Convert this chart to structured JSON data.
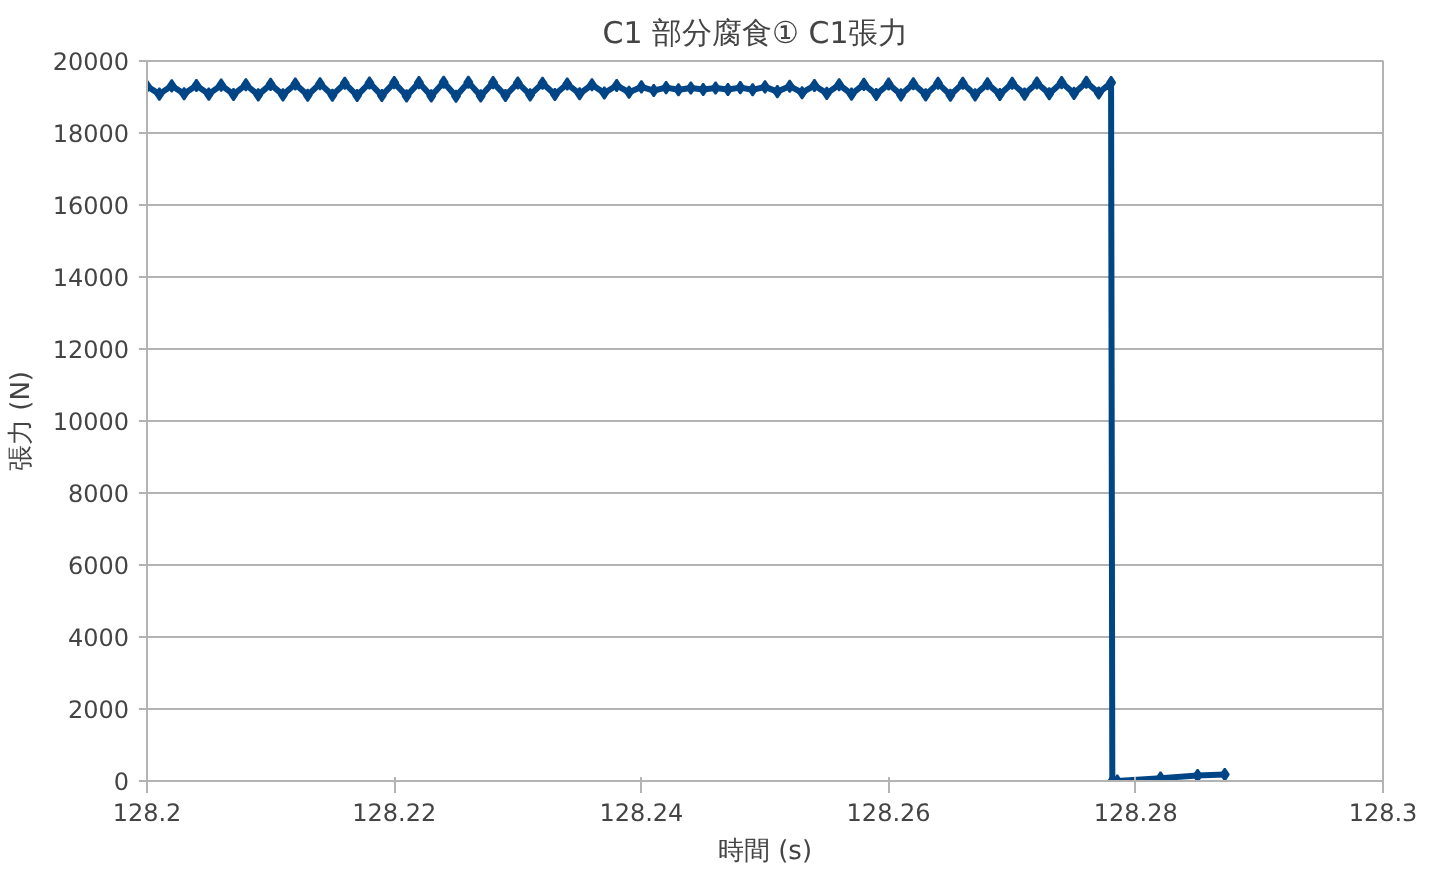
{
  "chart_data": {
    "type": "line",
    "title": "C1  部分腐食①  C1張力",
    "xlabel": "時間 (s)",
    "ylabel": "張力 (N)",
    "xlim": [
      128.2,
      128.3
    ],
    "xticks": [
      128.2,
      128.22,
      128.24,
      128.26,
      128.28,
      128.3
    ],
    "ylim": [
      0,
      20000
    ],
    "yticks": [
      0,
      2000,
      4000,
      6000,
      8000,
      10000,
      12000,
      14000,
      16000,
      18000,
      20000
    ],
    "grid": "y",
    "marker": "diamond",
    "line_style": "solid",
    "series": [
      {
        "color": "#004586",
        "x": [
          128.2,
          128.201,
          128.202,
          128.203,
          128.204,
          128.205,
          128.206,
          128.207,
          128.208,
          128.209,
          128.21,
          128.211,
          128.212,
          128.213,
          128.214,
          128.215,
          128.216,
          128.217,
          128.218,
          128.219,
          128.22,
          128.221,
          128.222,
          128.223,
          128.224,
          128.225,
          128.226,
          128.227,
          128.228,
          128.229,
          128.23,
          128.231,
          128.232,
          128.233,
          128.234,
          128.235,
          128.236,
          128.237,
          128.238,
          128.239,
          128.24,
          128.241,
          128.242,
          128.243,
          128.244,
          128.245,
          128.246,
          128.247,
          128.248,
          128.249,
          128.25,
          128.251,
          128.252,
          128.253,
          128.254,
          128.255,
          128.256,
          128.257,
          128.258,
          128.259,
          128.26,
          128.261,
          128.262,
          128.263,
          128.264,
          128.265,
          128.266,
          128.267,
          128.268,
          128.269,
          128.27,
          128.271,
          128.272,
          128.273,
          128.274,
          128.275,
          128.276,
          128.277,
          128.278,
          128.2781,
          128.2785,
          128.282,
          128.285,
          128.2872
        ],
        "values": [
          19300,
          19080,
          19310,
          19090,
          19320,
          19080,
          19330,
          19070,
          19340,
          19060,
          19350,
          19060,
          19360,
          19050,
          19370,
          19050,
          19380,
          19040,
          19390,
          19040,
          19400,
          19030,
          19400,
          19030,
          19410,
          19020,
          19410,
          19030,
          19400,
          19040,
          19390,
          19060,
          19380,
          19070,
          19360,
          19090,
          19340,
          19110,
          19320,
          19130,
          19280,
          19180,
          19260,
          19200,
          19250,
          19210,
          19250,
          19210,
          19260,
          19200,
          19280,
          19150,
          19300,
          19120,
          19320,
          19100,
          19340,
          19080,
          19350,
          19070,
          19360,
          19060,
          19370,
          19060,
          19380,
          19050,
          19380,
          19060,
          19370,
          19070,
          19380,
          19080,
          19390,
          19090,
          19400,
          19100,
          19410,
          19110,
          19400,
          0,
          0,
          80,
          150,
          180
        ]
      }
    ]
  }
}
